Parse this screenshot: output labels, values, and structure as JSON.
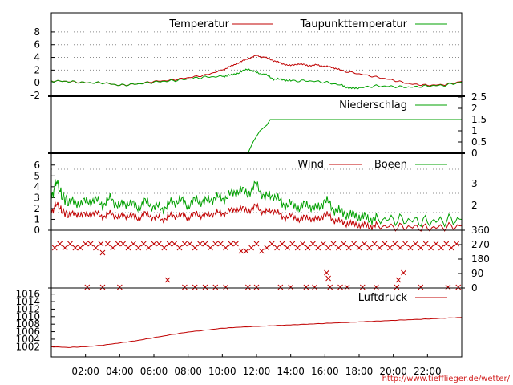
{
  "source_credit": "http://www.tiefflieger.de/wetter/",
  "colors": {
    "red": "#c00000",
    "green": "#00a000",
    "black": "#000000",
    "grid": "#8c8c8c"
  },
  "chart_data": [
    {
      "type": "line",
      "ylim": [
        -2,
        9
      ],
      "y_ticks": [
        "8",
        "6",
        "4",
        "2",
        "0",
        "-2"
      ],
      "y_tick_values": [
        8,
        6,
        4,
        2,
        0,
        -2
      ],
      "grid": true,
      "legend_placement": "top-right",
      "series": [
        {
          "name": "Temperatur",
          "color": "#c00000",
          "x": [
            0,
            1,
            2,
            3,
            4,
            5,
            6,
            7,
            8,
            9,
            10,
            10.5,
            11,
            11.5,
            12,
            12.5,
            13,
            13.5,
            14,
            14.5,
            15,
            15.5,
            16,
            16.5,
            17,
            18,
            19,
            20,
            21,
            22,
            23,
            24
          ],
          "y": [
            0.3,
            0.2,
            0,
            0,
            -0.4,
            -0.2,
            0.2,
            0.4,
            0.8,
            1.2,
            2.0,
            2.6,
            3.2,
            3.8,
            4.3,
            4.0,
            3.5,
            3.0,
            2.7,
            3.0,
            2.7,
            2.8,
            2.6,
            2.4,
            1.9,
            1.4,
            0.9,
            0.4,
            -0.2,
            -0.4,
            -0.3,
            0.2
          ]
        },
        {
          "name": "Taupunkttemperatur",
          "color": "#00a000",
          "x": [
            0,
            1,
            2,
            3,
            4,
            5,
            6,
            7,
            8,
            9,
            10,
            10.5,
            11,
            11.5,
            12,
            12.5,
            13,
            13.5,
            14,
            15,
            16,
            17,
            17.5,
            18,
            19,
            20,
            21,
            22,
            23,
            24
          ],
          "y": [
            0.3,
            0.2,
            0,
            0,
            -0.4,
            -0.2,
            0.1,
            0.3,
            0.6,
            0.9,
            1.0,
            1.2,
            1.6,
            2.2,
            1.6,
            1.3,
            0.6,
            0.5,
            0.3,
            0.3,
            0.1,
            -0.4,
            -0.9,
            -0.8,
            -0.5,
            -0.6,
            -0.7,
            -0.5,
            -0.4,
            0.1
          ]
        }
      ]
    },
    {
      "type": "line",
      "ylim": [
        0,
        2.5
      ],
      "y_ticks_right": [
        "2.5",
        "2",
        "1.5",
        "1",
        "0.5",
        "0"
      ],
      "y_tick_values": [
        2.5,
        2,
        1.5,
        1,
        0.5,
        0
      ],
      "legend_placement": "top-right",
      "series": [
        {
          "name": "Niederschlag",
          "color": "#00a000",
          "x": [
            0,
            11.5,
            11.8,
            12.2,
            12.6,
            12.8,
            24
          ],
          "y": [
            0,
            0,
            0.5,
            1.0,
            1.25,
            1.5,
            1.5
          ]
        }
      ]
    },
    {
      "type": "line",
      "ylim": [
        0,
        6.5
      ],
      "y_ticks": [
        "6",
        "5",
        "4",
        "3",
        "2",
        "1",
        "0"
      ],
      "y_tick_values": [
        6,
        5,
        4,
        3,
        2,
        1,
        0
      ],
      "y_ticks_right": [
        "3",
        "2"
      ],
      "y_tick_right_values": [
        4.3,
        2.3
      ],
      "grid": true,
      "legend_placement": "top-right",
      "series": [
        {
          "name": "Wind",
          "color": "#c00000",
          "x": [
            0,
            0.3,
            0.6,
            1,
            1.5,
            2,
            2.5,
            3,
            3.5,
            4,
            4.5,
            5,
            5.5,
            6,
            6.5,
            7,
            7.5,
            8,
            8.5,
            9,
            9.5,
            10,
            10.5,
            11,
            11.5,
            12,
            12.5,
            13,
            13.5,
            14,
            14.5,
            15,
            15.5,
            16,
            16.5,
            17,
            17.5,
            18,
            18.5,
            19,
            20,
            21,
            22,
            23,
            24
          ],
          "y": [
            1.5,
            2.5,
            1.8,
            1.4,
            1.5,
            1.4,
            1.6,
            1.3,
            1.5,
            1.2,
            1.4,
            1.1,
            1.5,
            1.2,
            1.0,
            1.3,
            1.4,
            1.2,
            1.5,
            1.3,
            1.6,
            1.5,
            1.8,
            2.0,
            1.8,
            2.2,
            1.6,
            1.9,
            1.2,
            1.3,
            1.0,
            1.2,
            0.9,
            1.5,
            1.0,
            0.7,
            0.6,
            0.5,
            0.4,
            0.4,
            0.3,
            0.3,
            0.2,
            0.3,
            0.4
          ]
        },
        {
          "name": "Boeen",
          "color": "#00a000",
          "x": [
            0,
            0.3,
            0.6,
            1,
            1.5,
            2,
            2.5,
            3,
            3.5,
            4,
            4.5,
            5,
            5.5,
            6,
            6.5,
            7,
            7.5,
            8,
            8.5,
            9,
            9.5,
            10,
            10.5,
            11,
            11.5,
            12,
            12.5,
            13,
            13.5,
            14,
            14.5,
            15,
            15.5,
            16,
            16.5,
            17,
            17.5,
            18,
            18.5,
            19,
            20,
            21,
            22,
            23,
            24
          ],
          "y": [
            2.8,
            4.6,
            3.2,
            2.6,
            2.5,
            2.6,
            2.8,
            2.4,
            2.9,
            2.2,
            2.6,
            2.1,
            2.6,
            2.2,
            2.0,
            2.5,
            2.8,
            2.3,
            2.8,
            2.6,
            3.0,
            2.9,
            3.3,
            3.7,
            3.4,
            4.2,
            3.0,
            3.3,
            2.4,
            2.4,
            2.1,
            2.4,
            1.9,
            2.8,
            2.0,
            1.6,
            1.4,
            1.3,
            1.1,
            1.0,
            1.0,
            0.9,
            0.8,
            0.9,
            1.0
          ]
        }
      ]
    },
    {
      "type": "scatter",
      "ylim": [
        0,
        360
      ],
      "y_ticks_right": [
        "360",
        "270",
        "180",
        "90",
        "0"
      ],
      "y_tick_values": [
        360,
        270,
        180,
        90,
        0
      ],
      "series": [
        {
          "name": "",
          "color": "#c00000",
          "x": [
            0.2,
            0.5,
            0.8,
            1.1,
            1.4,
            1.7,
            2.0,
            2.3,
            2.6,
            2.9,
            3.0,
            3.3,
            3.6,
            3.9,
            4.2,
            4.5,
            4.8,
            5.1,
            5.4,
            5.7,
            6.0,
            6.3,
            6.6,
            6.9,
            7.2,
            7.5,
            7.8,
            8.1,
            8.4,
            8.7,
            9.0,
            9.3,
            9.6,
            9.9,
            10.2,
            10.5,
            10.8,
            11.1,
            11.4,
            11.7,
            12.0,
            12.3,
            12.6,
            12.9,
            13.2,
            13.5,
            13.8,
            14.1,
            14.4,
            14.7,
            15.0,
            15.3,
            15.6,
            15.9,
            16.2,
            16.5,
            16.8,
            17.1,
            17.4,
            17.7,
            18.0,
            18.3,
            18.6,
            18.9,
            19.2,
            19.5,
            19.8,
            20.1,
            20.4,
            20.7,
            21.0,
            21.3,
            21.6,
            21.9,
            22.2,
            22.5,
            22.8,
            23.1,
            23.4,
            23.7,
            2.1,
            7.8,
            9.0,
            11.5,
            12.0,
            16.1,
            20.6,
            3.0,
            4.0,
            8.4,
            9.6,
            10.2,
            13.4,
            14.0,
            14.9,
            15.4,
            16.3,
            16.9,
            17.3,
            18.2,
            19.0,
            20.2,
            21.6,
            23.2,
            23.8,
            6.8,
            16.2,
            20.3
          ],
          "y": [
            250,
            275,
            250,
            275,
            250,
            250,
            275,
            275,
            250,
            275,
            220,
            275,
            250,
            275,
            275,
            250,
            275,
            250,
            275,
            250,
            275,
            275,
            250,
            275,
            275,
            250,
            275,
            275,
            250,
            275,
            275,
            250,
            275,
            275,
            250,
            275,
            275,
            230,
            230,
            250,
            275,
            230,
            250,
            275,
            250,
            275,
            250,
            275,
            250,
            275,
            250,
            275,
            250,
            275,
            250,
            275,
            250,
            275,
            250,
            275,
            250,
            275,
            250,
            275,
            250,
            275,
            250,
            275,
            250,
            275,
            250,
            275,
            250,
            275,
            250,
            275,
            250,
            275,
            250,
            275,
            5,
            5,
            5,
            5,
            5,
            95,
            95,
            5,
            5,
            5,
            5,
            5,
            5,
            5,
            5,
            5,
            5,
            5,
            5,
            5,
            5,
            5,
            5,
            5,
            5,
            50,
            60,
            50
          ]
        }
      ]
    },
    {
      "type": "line",
      "ylim": [
        1001,
        1017
      ],
      "y_ticks": [
        "1016",
        "1014",
        "1012",
        "1010",
        "1008",
        "1006",
        "1004",
        "1002"
      ],
      "y_tick_values": [
        1016,
        1014,
        1012,
        1010,
        1008,
        1006,
        1004,
        1002
      ],
      "x_ticks": [
        "02:00",
        "04:00",
        "06:00",
        "08:00",
        "10:00",
        "12:00",
        "14:00",
        "16:00",
        "18:00",
        "20:00",
        "22:00"
      ],
      "x_tick_values": [
        2,
        4,
        6,
        8,
        10,
        12,
        14,
        16,
        18,
        20,
        22
      ],
      "xlim": [
        0,
        24
      ],
      "legend_placement": "top-right",
      "series": [
        {
          "name": "Luftdruck",
          "color": "#c00000",
          "x": [
            0,
            1,
            2,
            3,
            4,
            5,
            6,
            7,
            8,
            9,
            10,
            11,
            12,
            13,
            14,
            15,
            16,
            17,
            18,
            19,
            20,
            21,
            22,
            23,
            24
          ],
          "y": [
            1002.0,
            1001.8,
            1002.0,
            1002.4,
            1003.0,
            1003.6,
            1004.4,
            1005.2,
            1005.9,
            1006.4,
            1006.9,
            1007.2,
            1007.4,
            1007.6,
            1007.8,
            1008.0,
            1008.2,
            1008.4,
            1008.6,
            1008.8,
            1009.0,
            1009.2,
            1009.4,
            1009.6,
            1009.8
          ]
        }
      ]
    }
  ]
}
